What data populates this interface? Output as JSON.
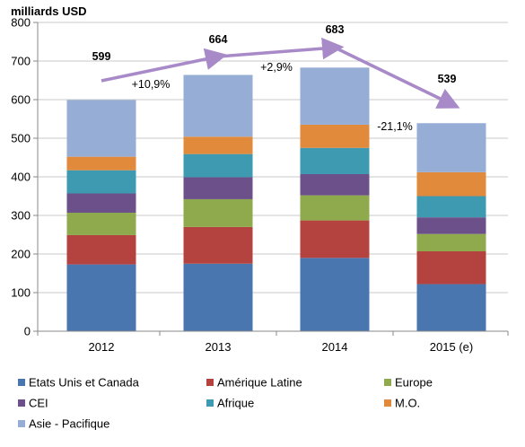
{
  "chart_data": {
    "type": "bar",
    "stacked": true,
    "unit_label": "milliards USD",
    "categories": [
      "2012",
      "2013",
      "2014",
      "2015 (e)"
    ],
    "ylim": [
      0,
      800
    ],
    "yticks": [
      0,
      100,
      200,
      300,
      400,
      500,
      600,
      700,
      800
    ],
    "grid": "horizontal",
    "legend_position": "bottom",
    "series": [
      {
        "name": "Etats Unis et Canada",
        "color": "#4a76b0",
        "values": [
          173,
          175,
          190,
          122
        ]
      },
      {
        "name": "Amérique Latine",
        "color": "#b44340",
        "values": [
          76,
          95,
          97,
          85
        ]
      },
      {
        "name": "Europe",
        "color": "#8eaa4c",
        "values": [
          58,
          72,
          65,
          45
        ]
      },
      {
        "name": "CEI",
        "color": "#6c508a",
        "values": [
          50,
          57,
          55,
          43
        ]
      },
      {
        "name": "Afrique",
        "color": "#3d9ab0",
        "values": [
          60,
          60,
          68,
          55
        ]
      },
      {
        "name": "M.O.",
        "color": "#e18a3b",
        "values": [
          35,
          45,
          60,
          62
        ]
      },
      {
        "name": "Asie - Pacifique",
        "color": "#96aed6",
        "values": [
          147,
          160,
          148,
          127
        ]
      }
    ],
    "totals": [
      "599",
      "664",
      "683",
      "539"
    ],
    "changes": [
      "+10,9%",
      "+2,9%",
      "-21,1%"
    ],
    "trend_color": "#a88ac8"
  }
}
